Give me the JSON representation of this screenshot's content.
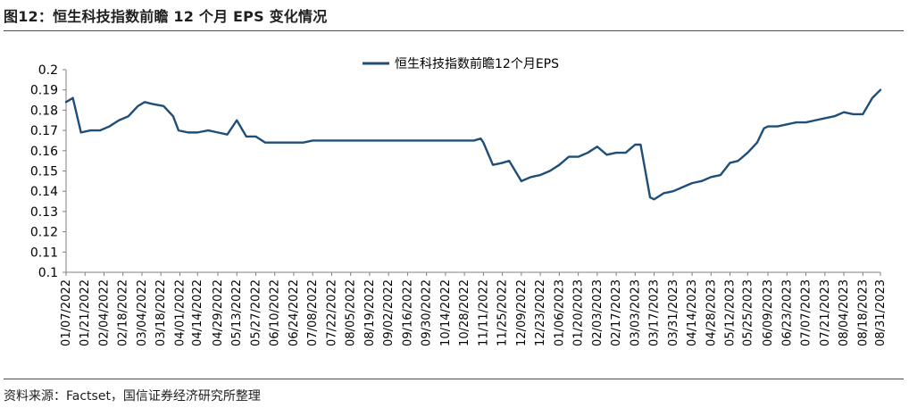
{
  "header": {
    "title": "图12：恒生科技指数前瞻 12 个月 EPS 变化情况"
  },
  "footer": {
    "source": "资料来源：Factset，国信证券经济研究所整理"
  },
  "chart_data": {
    "type": "line",
    "series": [
      {
        "name": "恒生科技指数前瞻12个月EPS",
        "color": "#1f4e79",
        "points": [
          [
            "2022-01-07",
            0.184
          ],
          [
            "2022-01-12",
            0.186
          ],
          [
            "2022-01-18",
            0.169
          ],
          [
            "2022-01-25",
            0.17
          ],
          [
            "2022-02-01",
            0.17
          ],
          [
            "2022-02-08",
            0.172
          ],
          [
            "2022-02-15",
            0.175
          ],
          [
            "2022-02-22",
            0.177
          ],
          [
            "2022-03-01",
            0.182
          ],
          [
            "2022-03-06",
            0.184
          ],
          [
            "2022-03-12",
            0.183
          ],
          [
            "2022-03-20",
            0.182
          ],
          [
            "2022-03-27",
            0.177
          ],
          [
            "2022-03-31",
            0.17
          ],
          [
            "2022-04-07",
            0.169
          ],
          [
            "2022-04-14",
            0.169
          ],
          [
            "2022-04-22",
            0.17
          ],
          [
            "2022-04-29",
            0.169
          ],
          [
            "2022-05-06",
            0.168
          ],
          [
            "2022-05-13",
            0.175
          ],
          [
            "2022-05-20",
            0.167
          ],
          [
            "2022-05-27",
            0.167
          ],
          [
            "2022-06-03",
            0.164
          ],
          [
            "2022-06-10",
            0.164
          ],
          [
            "2022-06-24",
            0.164
          ],
          [
            "2022-07-01",
            0.164
          ],
          [
            "2022-07-08",
            0.165
          ],
          [
            "2022-07-15",
            0.165
          ],
          [
            "2022-08-19",
            0.165
          ],
          [
            "2022-09-30",
            0.165
          ],
          [
            "2022-10-28",
            0.165
          ],
          [
            "2022-11-04",
            0.165
          ],
          [
            "2022-11-09",
            0.166
          ],
          [
            "2022-11-11",
            0.164
          ],
          [
            "2022-11-18",
            0.153
          ],
          [
            "2022-11-25",
            0.154
          ],
          [
            "2022-11-30",
            0.155
          ],
          [
            "2022-12-09",
            0.145
          ],
          [
            "2022-12-16",
            0.147
          ],
          [
            "2022-12-23",
            0.148
          ],
          [
            "2022-12-30",
            0.15
          ],
          [
            "2023-01-06",
            0.153
          ],
          [
            "2023-01-13",
            0.157
          ],
          [
            "2023-01-20",
            0.157
          ],
          [
            "2023-01-27",
            0.159
          ],
          [
            "2023-02-03",
            0.162
          ],
          [
            "2023-02-10",
            0.158
          ],
          [
            "2023-02-17",
            0.159
          ],
          [
            "2023-02-24",
            0.159
          ],
          [
            "2023-03-03",
            0.163
          ],
          [
            "2023-03-07",
            0.163
          ],
          [
            "2023-03-14",
            0.137
          ],
          [
            "2023-03-17",
            0.136
          ],
          [
            "2023-03-24",
            0.139
          ],
          [
            "2023-03-31",
            0.14
          ],
          [
            "2023-04-07",
            0.142
          ],
          [
            "2023-04-14",
            0.144
          ],
          [
            "2023-04-21",
            0.145
          ],
          [
            "2023-04-28",
            0.147
          ],
          [
            "2023-05-05",
            0.148
          ],
          [
            "2023-05-12",
            0.154
          ],
          [
            "2023-05-18",
            0.155
          ],
          [
            "2023-05-25",
            0.159
          ],
          [
            "2023-06-01",
            0.164
          ],
          [
            "2023-06-06",
            0.171
          ],
          [
            "2023-06-09",
            0.172
          ],
          [
            "2023-06-16",
            0.172
          ],
          [
            "2023-06-23",
            0.173
          ],
          [
            "2023-06-30",
            0.174
          ],
          [
            "2023-07-07",
            0.174
          ],
          [
            "2023-07-14",
            0.175
          ],
          [
            "2023-07-21",
            0.176
          ],
          [
            "2023-07-28",
            0.177
          ],
          [
            "2023-08-04",
            0.179
          ],
          [
            "2023-08-11",
            0.178
          ],
          [
            "2023-08-18",
            0.178
          ],
          [
            "2023-08-25",
            0.186
          ],
          [
            "2023-08-31",
            0.19
          ]
        ]
      }
    ],
    "x_ticks": [
      "01/07/2022",
      "01/21/2022",
      "02/04/2022",
      "02/18/2022",
      "03/04/2022",
      "03/18/2022",
      "04/01/2022",
      "04/14/2022",
      "04/29/2022",
      "05/13/2022",
      "05/27/2022",
      "06/10/2022",
      "06/24/2022",
      "07/08/2022",
      "07/22/2022",
      "08/05/2022",
      "08/19/2022",
      "09/02/2022",
      "09/16/2022",
      "09/30/2022",
      "10/14/2022",
      "10/28/2022",
      "11/11/2022",
      "11/25/2022",
      "12/09/2022",
      "12/23/2022",
      "01/06/2023",
      "01/20/2023",
      "02/03/2023",
      "02/17/2023",
      "03/03/2023",
      "03/17/2023",
      "03/31/2023",
      "04/14/2023",
      "04/28/2023",
      "05/12/2023",
      "05/25/2023",
      "06/09/2023",
      "06/23/2023",
      "07/07/2023",
      "07/21/2023",
      "08/04/2023",
      "08/18/2023",
      "08/31/2023"
    ],
    "y_ticks": [
      "0.2",
      "0.19",
      "0.18",
      "0.17",
      "0.16",
      "0.15",
      "0.14",
      "0.13",
      "0.12",
      "0.11",
      "0.1"
    ],
    "ylim": [
      0.1,
      0.2
    ],
    "xlim": [
      "2022-01-07",
      "2023-08-31"
    ],
    "grid": false,
    "legend_position": "top-center"
  }
}
